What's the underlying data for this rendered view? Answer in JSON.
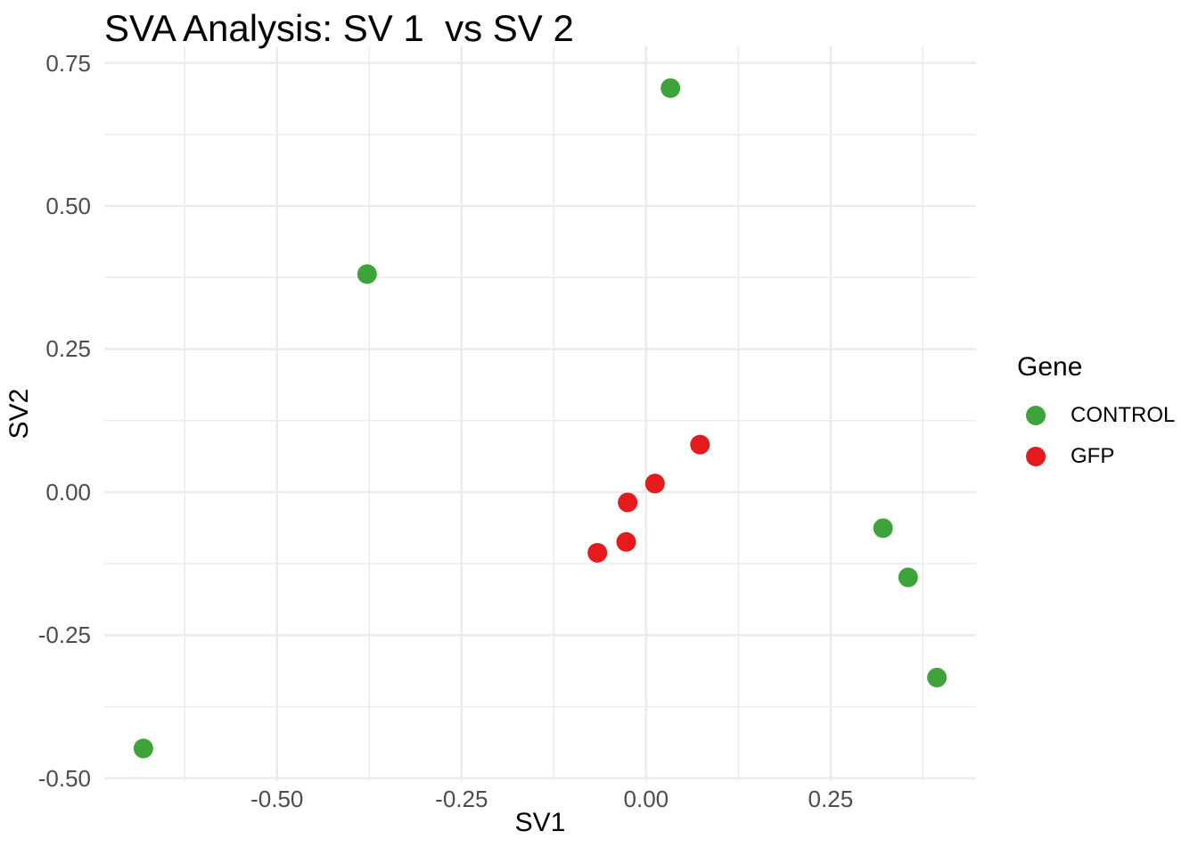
{
  "title": "SVA Analysis: SV 1  vs SV 2",
  "colors": {
    "control": "#3FA33C",
    "gfp": "#E41A1C",
    "grid": "#EBEBEB",
    "tick_label": "#4D4D4D",
    "text": "#000000",
    "background": "#FFFFFF"
  },
  "legend": {
    "title": "Gene",
    "entries": [
      {
        "label": "CONTROL",
        "color": "#3FA33C"
      },
      {
        "label": "GFP",
        "color": "#E41A1C"
      }
    ]
  },
  "chart_data": {
    "type": "scatter",
    "title": "SVA Analysis: SV 1  vs SV 2",
    "xlabel": "SV1",
    "ylabel": "SV2",
    "xlim": [
      -0.734,
      0.447
    ],
    "ylim": [
      -0.505,
      0.779
    ],
    "grid": "major+minor",
    "legend_title": "Gene",
    "legend_position": "right",
    "point_radius_px": 11,
    "x_ticks": {
      "major": [
        -0.5,
        -0.25,
        0.0,
        0.25
      ],
      "labels": [
        "-0.50",
        "-0.25",
        "0.00",
        "0.25"
      ],
      "minor": [
        -0.625,
        -0.375,
        -0.125,
        0.125,
        0.375
      ]
    },
    "y_ticks": {
      "major": [
        0.75,
        0.5,
        0.25,
        0.0,
        -0.25,
        -0.5
      ],
      "labels": [
        "0.75",
        "0.50",
        "0.25",
        "0.00",
        "-0.25",
        "-0.50"
      ],
      "minor": [
        0.625,
        0.375,
        0.125,
        -0.125,
        -0.375
      ]
    },
    "series": [
      {
        "name": "CONTROL",
        "color": "#3FA33C",
        "points": [
          [
            0.033,
            0.706
          ],
          [
            -0.378,
            0.381
          ],
          [
            0.321,
            -0.063
          ],
          [
            0.355,
            -0.149
          ],
          [
            0.394,
            -0.324
          ],
          [
            -0.681,
            -0.448
          ]
        ]
      },
      {
        "name": "GFP",
        "color": "#E41A1C",
        "points": [
          [
            0.073,
            0.083
          ],
          [
            0.012,
            0.015
          ],
          [
            -0.025,
            -0.018
          ],
          [
            -0.027,
            -0.087
          ],
          [
            -0.066,
            -0.106
          ]
        ]
      }
    ]
  }
}
